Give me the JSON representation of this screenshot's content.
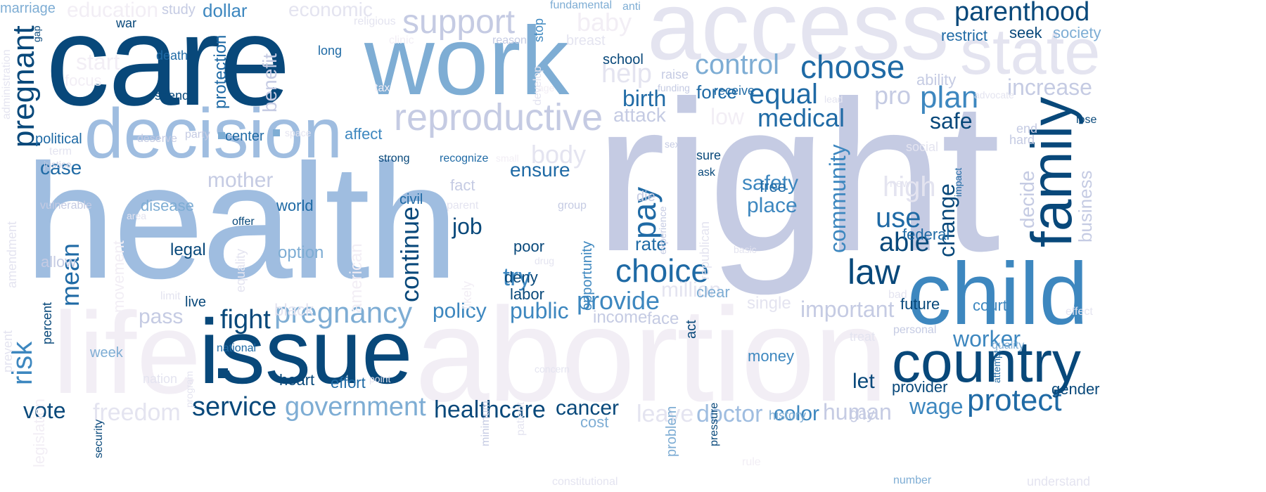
{
  "palette": {
    "darkest": "#08487a",
    "dark": "#1f6aa5",
    "mid": "#3d87bf",
    "soft": "#7eadd4",
    "light": "#9fbde0",
    "pale": "#c5cbe3",
    "faint": "#e4e4f0",
    "ghost": "#f2eef5"
  },
  "words": [
    {
      "text": "right",
      "fill": "pale"
    },
    {
      "text": "health",
      "fill": "light"
    },
    {
      "text": "care",
      "fill": "darkest"
    },
    {
      "text": "abortion",
      "fill": "ghost"
    },
    {
      "text": "access",
      "fill": "faint"
    },
    {
      "text": "life",
      "fill": "ghost"
    },
    {
      "text": "work",
      "fill": "soft"
    },
    {
      "text": "issue",
      "fill": "darkest"
    },
    {
      "text": "decision",
      "fill": "light"
    },
    {
      "text": "child",
      "fill": "mid"
    },
    {
      "text": "country",
      "fill": "darkest"
    },
    {
      "text": "family",
      "fill": "darkest"
    },
    {
      "text": "state",
      "fill": "faint"
    },
    {
      "text": "reproductive",
      "fill": "pale"
    },
    {
      "text": "support",
      "fill": "pale"
    },
    {
      "text": "choice",
      "fill": "dark"
    },
    {
      "text": "parenthood",
      "fill": "darkest"
    },
    {
      "text": "choose",
      "fill": "dark"
    },
    {
      "text": "plan",
      "fill": "mid"
    },
    {
      "text": "control",
      "fill": "soft"
    },
    {
      "text": "equal",
      "fill": "dark"
    },
    {
      "text": "pregnancy",
      "fill": "soft"
    },
    {
      "text": "law",
      "fill": "darkest"
    },
    {
      "text": "pregnant",
      "fill": "darkest"
    },
    {
      "text": "protect",
      "fill": "dark"
    },
    {
      "text": "service",
      "fill": "darkest"
    },
    {
      "text": "government",
      "fill": "soft"
    },
    {
      "text": "healthcare",
      "fill": "darkest"
    },
    {
      "text": "pay",
      "fill": "dark"
    },
    {
      "text": "medical",
      "fill": "dark"
    },
    {
      "text": "community",
      "fill": "mid"
    },
    {
      "text": "continue",
      "fill": "darkest"
    },
    {
      "text": "mean",
      "fill": "dark"
    },
    {
      "text": "provide",
      "fill": "mid"
    },
    {
      "text": "increase",
      "fill": "pale"
    },
    {
      "text": "cancer",
      "fill": "darkest"
    },
    {
      "text": "fight",
      "fill": "darkest"
    },
    {
      "text": "body",
      "fill": "faint"
    },
    {
      "text": "help",
      "fill": "faint"
    },
    {
      "text": "birth",
      "fill": "dark"
    },
    {
      "text": "risk",
      "fill": "mid"
    },
    {
      "text": "use",
      "fill": "dark"
    },
    {
      "text": "able",
      "fill": "darkest"
    },
    {
      "text": "change",
      "fill": "darkest"
    },
    {
      "text": "safe",
      "fill": "darkest"
    },
    {
      "text": "public",
      "fill": "mid"
    },
    {
      "text": "important",
      "fill": "pale"
    },
    {
      "text": "freedom",
      "fill": "faint"
    },
    {
      "text": "doctor",
      "fill": "light"
    },
    {
      "text": "human",
      "fill": "pale"
    },
    {
      "text": "wage",
      "fill": "mid"
    },
    {
      "text": "worker",
      "fill": "mid"
    },
    {
      "text": "safety",
      "fill": "mid"
    },
    {
      "text": "place",
      "fill": "mid"
    },
    {
      "text": "policy",
      "fill": "mid"
    },
    {
      "text": "job",
      "fill": "darkest"
    },
    {
      "text": "try",
      "fill": "mid"
    },
    {
      "text": "vote",
      "fill": "darkest"
    },
    {
      "text": "leave",
      "fill": "faint"
    },
    {
      "text": "color",
      "fill": "mid"
    },
    {
      "text": "attack",
      "fill": "pale"
    },
    {
      "text": "pass",
      "fill": "pale"
    },
    {
      "text": "force",
      "fill": "dark"
    },
    {
      "text": "rate",
      "fill": "dark"
    },
    {
      "text": "ensure",
      "fill": "dark"
    },
    {
      "text": "mother",
      "fill": "pale"
    },
    {
      "text": "dollar",
      "fill": "mid"
    },
    {
      "text": "economic",
      "fill": "faint"
    },
    {
      "text": "education",
      "fill": "ghost"
    },
    {
      "text": "million",
      "fill": "faint"
    },
    {
      "text": "high",
      "fill": "faint"
    },
    {
      "text": "pro",
      "fill": "pale"
    },
    {
      "text": "decide",
      "fill": "pale"
    },
    {
      "text": "business",
      "fill": "pale"
    },
    {
      "text": "low",
      "fill": "ghost"
    },
    {
      "text": "baby",
      "fill": "ghost"
    },
    {
      "text": "start",
      "fill": "ghost"
    },
    {
      "text": "case",
      "fill": "dark"
    },
    {
      "text": "benefit",
      "fill": "pale"
    },
    {
      "text": "protection",
      "fill": "dark"
    },
    {
      "text": "income",
      "fill": "pale"
    },
    {
      "text": "face",
      "fill": "pale"
    },
    {
      "text": "let",
      "fill": "darkest"
    },
    {
      "text": "court",
      "fill": "mid"
    },
    {
      "text": "federal",
      "fill": "dark"
    },
    {
      "text": "money",
      "fill": "mid"
    },
    {
      "text": "option",
      "fill": "soft"
    },
    {
      "text": "legal",
      "fill": "darkest"
    },
    {
      "text": "poor",
      "fill": "darkest"
    },
    {
      "text": "deny",
      "fill": "darkest"
    },
    {
      "text": "labor",
      "fill": "darkest"
    },
    {
      "text": "future",
      "fill": "darkest"
    },
    {
      "text": "provider",
      "fill": "darkest"
    },
    {
      "text": "gender",
      "fill": "darkest"
    },
    {
      "text": "restrict",
      "fill": "dark"
    },
    {
      "text": "seek",
      "fill": "darkest"
    },
    {
      "text": "society",
      "fill": "soft"
    },
    {
      "text": "ability",
      "fill": "pale"
    },
    {
      "text": "world",
      "fill": "dark"
    },
    {
      "text": "disease",
      "fill": "soft"
    },
    {
      "text": "allow",
      "fill": "pale"
    },
    {
      "text": "heart",
      "fill": "darkest"
    },
    {
      "text": "effort",
      "fill": "dark"
    },
    {
      "text": "cost",
      "fill": "soft"
    },
    {
      "text": "clear",
      "fill": "soft"
    },
    {
      "text": "free",
      "fill": "dark"
    },
    {
      "text": "fact",
      "fill": "pale"
    },
    {
      "text": "civil",
      "fill": "dark"
    },
    {
      "text": "affect",
      "fill": "mid"
    },
    {
      "text": "center",
      "fill": "dark"
    },
    {
      "text": "political",
      "fill": "dark"
    },
    {
      "text": "week",
      "fill": "soft"
    },
    {
      "text": "live",
      "fill": "darkest"
    },
    {
      "text": "marriage",
      "fill": "soft"
    },
    {
      "text": "study",
      "fill": "pale"
    },
    {
      "text": "war",
      "fill": "darkest"
    },
    {
      "text": "long",
      "fill": "dark"
    },
    {
      "text": "death",
      "fill": "dark"
    },
    {
      "text": "spend",
      "fill": "darkest"
    },
    {
      "text": "school",
      "fill": "darkest"
    },
    {
      "text": "raise",
      "fill": "pale"
    },
    {
      "text": "receive",
      "fill": "dark"
    },
    {
      "text": "stop",
      "fill": "mid"
    },
    {
      "text": "fundamental",
      "fill": "soft"
    },
    {
      "text": "anti",
      "fill": "soft"
    },
    {
      "text": "religious",
      "fill": "faint"
    },
    {
      "text": "reason",
      "fill": "pale"
    },
    {
      "text": "clinic",
      "fill": "ghost"
    },
    {
      "text": "breast",
      "fill": "faint"
    },
    {
      "text": "funding",
      "fill": "pale"
    },
    {
      "text": "develop",
      "fill": "faint"
    },
    {
      "text": "lead",
      "fill": "faint"
    },
    {
      "text": "advocate",
      "fill": "faint"
    },
    {
      "text": "end",
      "fill": "pale"
    },
    {
      "text": "hard",
      "fill": "pale"
    },
    {
      "text": "lose",
      "fill": "darkest"
    },
    {
      "text": "social",
      "fill": "faint"
    },
    {
      "text": "sure",
      "fill": "darkest"
    },
    {
      "text": "ask",
      "fill": "darkest"
    },
    {
      "text": "sex",
      "fill": "pale"
    },
    {
      "text": "strong",
      "fill": "darkest"
    },
    {
      "text": "recognize",
      "fill": "dark"
    },
    {
      "text": "small",
      "fill": "ghost"
    },
    {
      "text": "deserve",
      "fill": "pale"
    },
    {
      "text": "party",
      "fill": "pale"
    },
    {
      "text": "space",
      "fill": "faint"
    },
    {
      "text": "term",
      "fill": "faint"
    },
    {
      "text": "justice",
      "fill": "pale"
    },
    {
      "text": "vulnerable",
      "fill": "pale"
    },
    {
      "text": "area",
      "fill": "faint"
    },
    {
      "text": "offer",
      "fill": "darkest"
    },
    {
      "text": "group",
      "fill": "pale"
    },
    {
      "text": "parent",
      "fill": "faint"
    },
    {
      "text": "new",
      "fill": "faint"
    },
    {
      "text": "impact",
      "fill": "dark"
    },
    {
      "text": "die",
      "fill": "pale"
    },
    {
      "text": "experience",
      "fill": "pale"
    },
    {
      "text": "republican",
      "fill": "faint"
    },
    {
      "text": "basic",
      "fill": "faint"
    },
    {
      "text": "opportunity",
      "fill": "mid"
    },
    {
      "text": "drug",
      "fill": "faint"
    },
    {
      "text": "likely",
      "fill": "ghost"
    },
    {
      "text": "limit",
      "fill": "faint"
    },
    {
      "text": "equality",
      "fill": "faint"
    },
    {
      "text": "american",
      "fill": "ghost"
    },
    {
      "text": "movement",
      "fill": "ghost"
    },
    {
      "text": "black",
      "fill": "faint"
    },
    {
      "text": "single",
      "fill": "faint"
    },
    {
      "text": "act",
      "fill": "darkest"
    },
    {
      "text": "bad",
      "fill": "faint"
    },
    {
      "text": "personal",
      "fill": "pale"
    },
    {
      "text": "treat",
      "fill": "faint"
    },
    {
      "text": "effect",
      "fill": "faint"
    },
    {
      "text": "quality",
      "fill": "soft"
    },
    {
      "text": "attempt",
      "fill": "dark"
    },
    {
      "text": "percent",
      "fill": "darkest"
    },
    {
      "text": "national",
      "fill": "dark"
    },
    {
      "text": "nation",
      "fill": "faint"
    },
    {
      "text": "program",
      "fill": "faint"
    },
    {
      "text": "point",
      "fill": "faint"
    },
    {
      "text": "concern",
      "fill": "faint"
    },
    {
      "text": "security",
      "fill": "darkest"
    },
    {
      "text": "legislation",
      "fill": "ghost"
    },
    {
      "text": "minimum",
      "fill": "pale"
    },
    {
      "text": "patient",
      "fill": "faint"
    },
    {
      "text": "problem",
      "fill": "soft"
    },
    {
      "text": "pressure",
      "fill": "darkest"
    },
    {
      "text": "history",
      "fill": "soft"
    },
    {
      "text": "gay",
      "fill": "pale"
    },
    {
      "text": "rule",
      "fill": "ghost"
    },
    {
      "text": "number",
      "fill": "soft"
    },
    {
      "text": "understand",
      "fill": "faint"
    },
    {
      "text": "constitutional",
      "fill": "faint"
    },
    {
      "text": "prevent",
      "fill": "faint"
    },
    {
      "text": "amendment",
      "fill": "faint"
    },
    {
      "text": "administration",
      "fill": "faint"
    },
    {
      "text": "gap",
      "fill": "darkest"
    },
    {
      "text": "focus",
      "fill": "ghost"
    },
    {
      "text": "tax",
      "fill": "ghost"
    },
    {
      "text": "age",
      "fill": "ghost"
    }
  ]
}
